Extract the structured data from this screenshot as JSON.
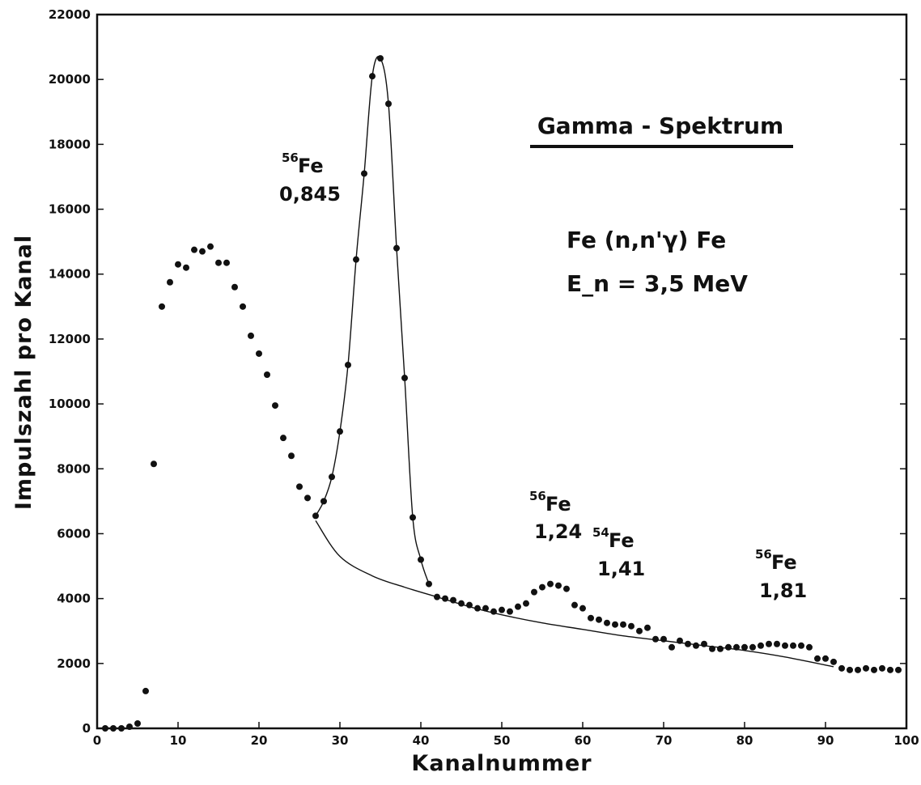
{
  "chart_data": {
    "type": "scatter",
    "title": "Gamma - Spektrum",
    "xlabel": "Kanalnummer",
    "ylabel": "Impulszahl pro Kanal",
    "xlim": [
      0,
      100
    ],
    "ylim": [
      0,
      22000
    ],
    "x_ticks": [
      0,
      10,
      20,
      30,
      40,
      50,
      60,
      70,
      80,
      90,
      100
    ],
    "y_tick_labels": [
      "0",
      "2000",
      "4000",
      "6000",
      "8000",
      "10000",
      "12000",
      "14000",
      "16000",
      "18000",
      "20000",
      "22000"
    ],
    "y_ticks": [
      0,
      2000,
      4000,
      6000,
      8000,
      10000,
      12000,
      14000,
      16000,
      18000,
      20000,
      22000
    ],
    "grid": false,
    "reaction": "Fe (n,n'γ) Fe",
    "energy": "E_n = 3,5 MeV",
    "peaks": [
      {
        "isotope": "56",
        "element": "Fe",
        "energy": "0,845"
      },
      {
        "isotope": "56",
        "element": "Fe",
        "energy": "1,24"
      },
      {
        "isotope": "54",
        "element": "Fe",
        "energy": "1,41"
      },
      {
        "isotope": "56",
        "element": "Fe",
        "energy": "1,81"
      }
    ],
    "series": [
      {
        "kind": "points",
        "x": [
          1,
          2,
          3,
          4,
          5,
          6,
          7,
          8,
          9,
          10,
          11,
          12,
          13,
          14,
          15,
          16,
          17,
          18,
          19,
          20,
          21,
          22,
          23,
          24,
          25,
          26,
          27,
          28,
          29,
          30,
          31,
          32,
          33,
          34,
          35,
          36,
          37,
          38,
          39,
          40,
          41,
          42,
          43,
          44,
          45,
          46,
          47,
          48,
          49,
          50,
          51,
          52,
          53,
          54,
          55,
          56,
          57,
          58,
          59,
          60,
          61,
          62,
          63,
          64,
          65,
          66,
          67,
          68,
          69,
          70,
          71,
          72,
          73,
          74,
          75,
          76,
          77,
          78,
          79,
          80,
          81,
          82,
          83,
          84,
          85,
          86,
          87,
          88,
          89,
          90,
          91,
          92,
          93,
          94,
          95,
          96,
          97,
          98,
          99
        ],
        "y": [
          0,
          0,
          0,
          50,
          150,
          1150,
          8150,
          13000,
          13750,
          14300,
          14200,
          14750,
          14700,
          14850,
          14350,
          14350,
          13600,
          13000,
          12100,
          11550,
          10900,
          9950,
          8950,
          8400,
          7450,
          7100,
          6550,
          7000,
          7750,
          9150,
          11200,
          14450,
          17100,
          20100,
          20650,
          19250,
          14800,
          10800,
          6500,
          5200,
          4450,
          4050,
          4000,
          3950,
          3850,
          3800,
          3700,
          3700,
          3600,
          3650,
          3600,
          3750,
          3850,
          4200,
          4350,
          4450,
          4400,
          4300,
          3800,
          3700,
          3400,
          3350,
          3250,
          3200,
          3200,
          3150,
          3000,
          3100,
          2750,
          2750,
          2500,
          2700,
          2600,
          2550,
          2600,
          2450,
          2450,
          2500,
          2500,
          2500,
          2500,
          2550,
          2600,
          2600,
          2550,
          2550,
          2550,
          2500,
          2150,
          2150,
          2050,
          1850,
          1800,
          1800,
          1850,
          1800,
          1850,
          1800,
          1800
        ]
      },
      {
        "kind": "peak-curve",
        "x": [
          27,
          28,
          29,
          30,
          31,
          32,
          33,
          34,
          35,
          36,
          37,
          38,
          39,
          40,
          41
        ],
        "y": [
          6550,
          7000,
          7750,
          9150,
          11200,
          14450,
          17100,
          20100,
          20650,
          19250,
          14800,
          10800,
          6500,
          5200,
          4450
        ]
      },
      {
        "kind": "background-curve",
        "x": [
          27,
          30,
          34,
          38,
          42,
          46,
          50,
          55,
          60,
          65,
          70,
          75,
          80,
          85,
          91
        ],
        "y": [
          6400,
          5300,
          4700,
          4350,
          4050,
          3750,
          3500,
          3250,
          3050,
          2850,
          2700,
          2550,
          2400,
          2200,
          1900
        ]
      }
    ]
  }
}
